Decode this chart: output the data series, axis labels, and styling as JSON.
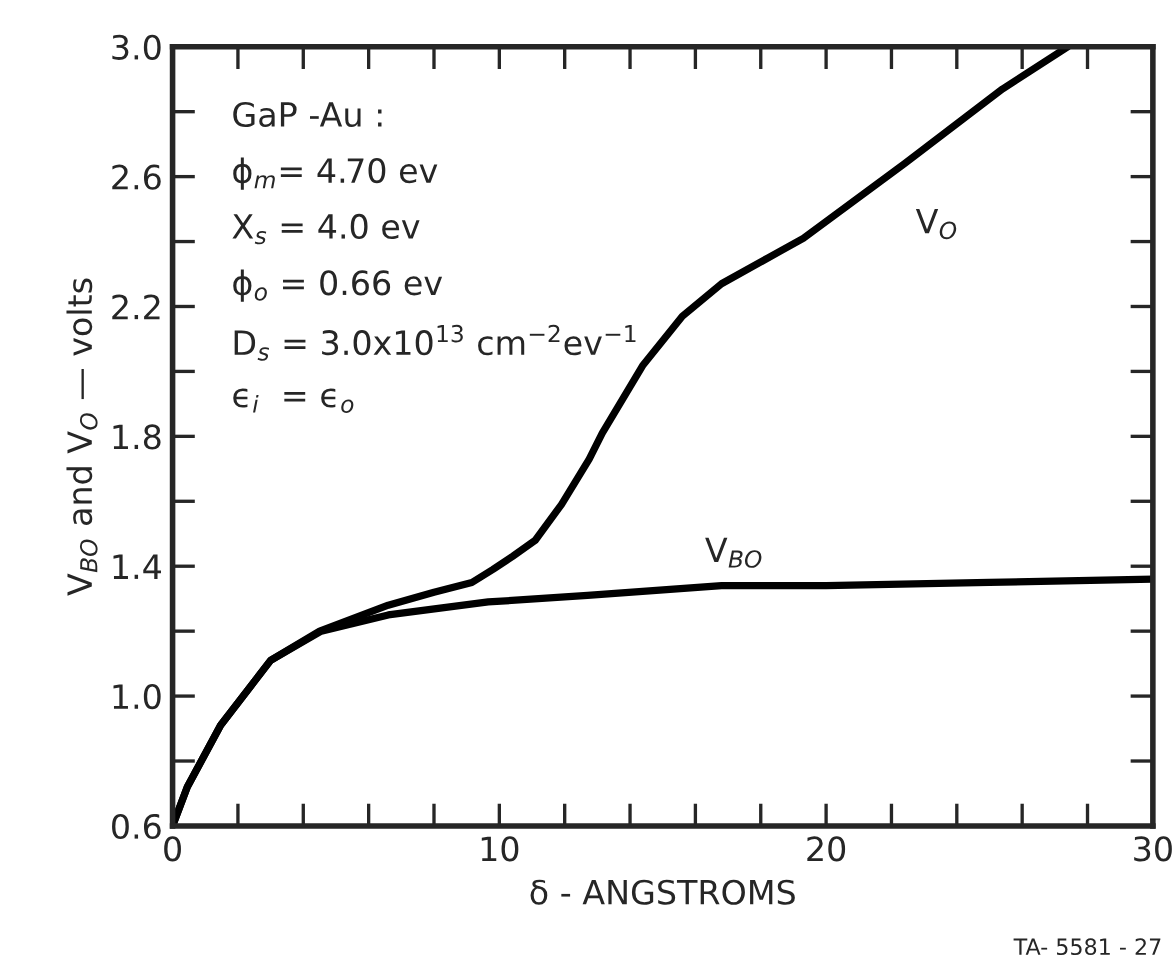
{
  "chart_data": {
    "type": "line",
    "xlabel": "δ - ANGSTROMS",
    "ylabel": "V$_{BO}$ and V$_{O}$ — volts",
    "xlim": [
      0,
      30
    ],
    "xticks": [
      0,
      {
        "value": 2,
        "label": null
      },
      {
        "value": 4,
        "label": null
      },
      {
        "value": 6,
        "label": null
      },
      {
        "value": 8,
        "label": null
      },
      10,
      {
        "value": 12,
        "label": null
      },
      {
        "value": 14,
        "label": null
      },
      {
        "value": 16,
        "label": null
      },
      {
        "value": 18,
        "label": null
      },
      20,
      {
        "value": 22,
        "label": null
      },
      {
        "value": 24,
        "label": null
      },
      {
        "value": 26,
        "label": null
      },
      {
        "value": 28,
        "label": null
      },
      30
    ],
    "ylim": [
      0.6,
      3.0
    ],
    "yticks": [
      0.6,
      {
        "value": 0.8,
        "label": null
      },
      {
        "value": 1.0,
        "label": "1.0"
      },
      {
        "value": 1.2,
        "label": null
      },
      1.4,
      {
        "value": 1.6,
        "label": null
      },
      1.8,
      {
        "value": 2.0,
        "label": null
      },
      2.2,
      {
        "value": 2.4,
        "label": null
      },
      2.6,
      {
        "value": 2.8,
        "label": null
      },
      {
        "value": 3.0,
        "label": "3.0"
      }
    ],
    "grid": false,
    "legend": false,
    "marker": "none",
    "line_style": "solid",
    "series": [
      {
        "name": "V$_{O}$",
        "color": "#000000",
        "x": [
          0,
          0.45,
          1.47,
          3.0,
          4.5,
          6.6,
          8.0,
          9.16,
          9.8,
          10.4,
          11.1,
          11.9,
          12.75,
          13.15,
          14.4,
          15.6,
          16.8,
          19.3,
          22.4,
          25.4,
          27.4
        ],
        "values": [
          0.6,
          0.72,
          0.91,
          1.11,
          1.2,
          1.28,
          1.32,
          1.35,
          1.39,
          1.43,
          1.48,
          1.59,
          1.73,
          1.81,
          2.02,
          2.17,
          2.27,
          2.41,
          2.64,
          2.87,
          3.0
        ]
      },
      {
        "name": "V$_{BO}$",
        "color": "#000000",
        "x": [
          0,
          0.45,
          1.47,
          3.0,
          4.55,
          6.6,
          9.66,
          12.7,
          16.8,
          20,
          25,
          30
        ],
        "values": [
          0.6,
          0.72,
          0.91,
          1.11,
          1.2,
          1.25,
          1.29,
          1.31,
          1.34,
          1.34,
          1.35,
          1.36
        ]
      }
    ],
    "annotations": [
      "GaP -Au :",
      "ϕ$_{m}$= 4.70 ev",
      "X$_{s}$ = 4.0 ev",
      "ϕ$_{o}$ = 0.66 ev",
      "D$_{s}$ = 3.0x10$^{13}$ cm$^{−2}$ev$^{−1}$",
      "ϵ$_{i}$  = ϵ$_{o}$",
      "TA- 5581 - 27"
    ]
  }
}
